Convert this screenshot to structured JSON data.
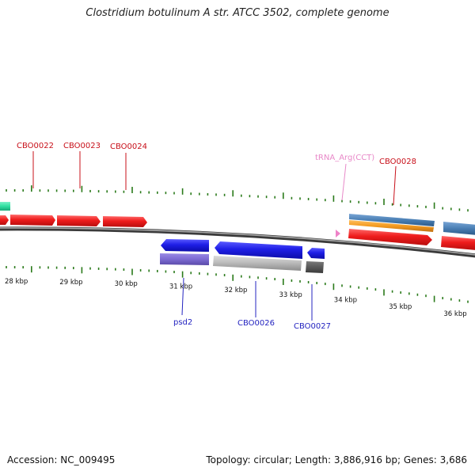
{
  "title": "Clostridium botulinum A str. ATCC 3502, complete genome",
  "footer": {
    "accession": "Accession: NC_009495",
    "summary": "Topology: circular; Length: 3,886,916 bp; Genes: 3,686"
  },
  "ticks": [
    "28 kbp",
    "29 kbp",
    "30 kbp",
    "31 kbp",
    "32 kbp",
    "33 kbp",
    "34 kbp",
    "35 kbp",
    "36 kbp"
  ],
  "labels": {
    "cbo0022": "CBO0022",
    "cbo0023": "CBO0023",
    "cbo0024": "CBO0024",
    "trna": "tRNA_Arg(CCT)",
    "cbo0028": "CBO0028",
    "psd2": "psd2",
    "cbo0026": "CBO0026",
    "cbo0027": "CBO0027"
  },
  "colors": {
    "forward_cds": "#ee1c1c",
    "reverse_cds": "#1e1ee6",
    "trna": "#ee82c8",
    "forward_label": "#c8101a",
    "reverse_label": "#2424c0",
    "trna_label": "#e888c8",
    "tick_mark": "#2a7a1a",
    "backbone": "#7a7a7a",
    "steelblue_feature": "#4a7fb4",
    "orange_feature": "#f39a1f",
    "purple_feature": "#7c6ad2",
    "grey_feature": "#b8b8b8",
    "darkgrey_feature": "#5a5a5a",
    "teal_feature": "#2de0a0"
  }
}
